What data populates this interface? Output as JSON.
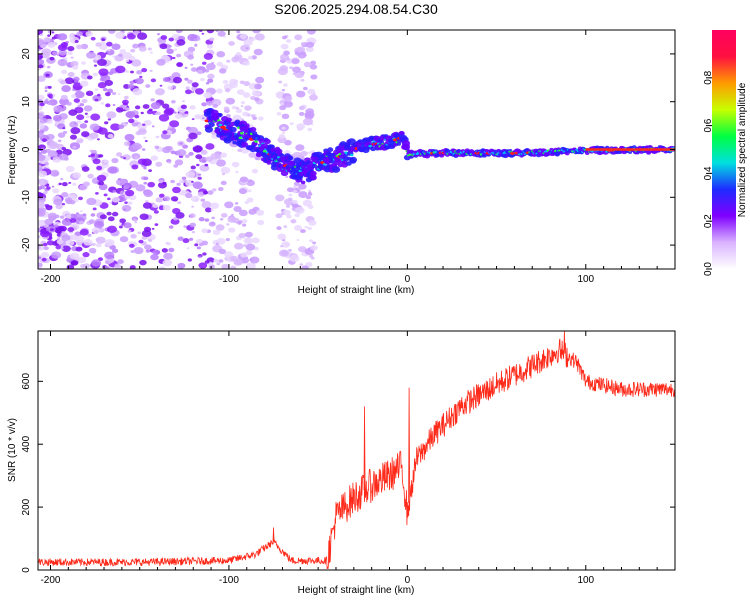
{
  "title": "S206.2025.294.08.54.C30",
  "chart_data": [
    {
      "type": "heatmap",
      "xlabel": "Height of straight line (km)",
      "ylabel": "Frequency (Hz)",
      "xlim": [
        -207,
        150
      ],
      "ylim": [
        -25,
        25
      ],
      "xticks": [
        -200,
        -100,
        0,
        100
      ],
      "yticks": [
        -20,
        -10,
        0,
        10,
        20
      ],
      "colorbar": {
        "label": "Normalized spectral amplitude",
        "range": [
          0,
          1
        ],
        "ticks": [
          "0.0",
          "0.2",
          "0.4",
          "0.6",
          "0.8"
        ],
        "colormap": [
          "#ffffff",
          "#d9b3ff",
          "#8000ff",
          "#1e2bff",
          "#00e0e0",
          "#00ff40",
          "#c8ff00",
          "#ff9a00",
          "#ff1040",
          "#ff0060"
        ]
      },
      "ridge_frequency_hz": [
        {
          "x": -110,
          "y": 6
        },
        {
          "x": -100,
          "y": 4
        },
        {
          "x": -90,
          "y": 3
        },
        {
          "x": -80,
          "y": 0
        },
        {
          "x": -70,
          "y": -3
        },
        {
          "x": -60,
          "y": -5
        },
        {
          "x": -50,
          "y": -3
        },
        {
          "x": -40,
          "y": -2
        },
        {
          "x": -30,
          "y": 0
        },
        {
          "x": -20,
          "y": 1
        },
        {
          "x": -10,
          "y": 1.5
        },
        {
          "x": -3,
          "y": 2.5
        },
        {
          "x": 0,
          "y": -1
        },
        {
          "x": 20,
          "y": -0.7
        },
        {
          "x": 60,
          "y": -0.8
        },
        {
          "x": 100,
          "y": -0.2
        },
        {
          "x": 150,
          "y": 0
        }
      ]
    },
    {
      "type": "line",
      "xlabel": "Height of straight line (km)",
      "ylabel": "SNR (10 * v/v)",
      "xlim": [
        -207,
        150
      ],
      "ylim": [
        0,
        760
      ],
      "xticks": [
        -200,
        -100,
        0,
        100
      ],
      "yticks": [
        0,
        200,
        400,
        600
      ],
      "series": [
        {
          "name": "SNR",
          "color": "#ff2a1a",
          "envelope": [
            {
              "x": -207,
              "y": 25
            },
            {
              "x": -150,
              "y": 25
            },
            {
              "x": -100,
              "y": 30
            },
            {
              "x": -85,
              "y": 50
            },
            {
              "x": -75,
              "y": 90
            },
            {
              "x": -65,
              "y": 30
            },
            {
              "x": -45,
              "y": 30
            },
            {
              "x": -40,
              "y": 170
            },
            {
              "x": -30,
              "y": 230
            },
            {
              "x": -20,
              "y": 270
            },
            {
              "x": -10,
              "y": 300
            },
            {
              "x": -3,
              "y": 330
            },
            {
              "x": 0,
              "y": 180
            },
            {
              "x": 5,
              "y": 350
            },
            {
              "x": 15,
              "y": 430
            },
            {
              "x": 30,
              "y": 520
            },
            {
              "x": 50,
              "y": 590
            },
            {
              "x": 70,
              "y": 650
            },
            {
              "x": 85,
              "y": 700
            },
            {
              "x": 95,
              "y": 660
            },
            {
              "x": 100,
              "y": 600
            },
            {
              "x": 120,
              "y": 575
            },
            {
              "x": 150,
              "y": 575
            }
          ],
          "spikes": [
            {
              "x": -75,
              "y": 135
            },
            {
              "x": -24,
              "y": 520
            },
            {
              "x": 1,
              "y": 580
            },
            {
              "x": 88,
              "y": 760
            }
          ]
        }
      ]
    }
  ]
}
